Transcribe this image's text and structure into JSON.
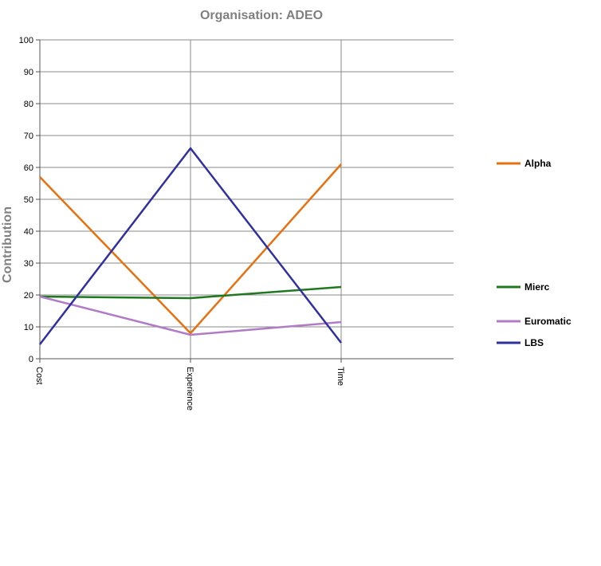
{
  "chart_data": {
    "type": "line",
    "title": "Organisation: ADEO",
    "xlabel": "",
    "ylabel": "Contribution",
    "categories": [
      "Cost",
      "Experience",
      "Time"
    ],
    "ylim": [
      0,
      100
    ],
    "yticks": [
      0,
      10,
      20,
      30,
      40,
      50,
      60,
      70,
      80,
      90,
      100
    ],
    "grid": true,
    "legend": "right",
    "series": [
      {
        "name": "Alpha",
        "color": "#e8700f",
        "values": [
          57,
          8,
          61
        ]
      },
      {
        "name": "Mierc",
        "color": "#207820",
        "values": [
          19.5,
          19,
          22.5
        ]
      },
      {
        "name": "Euromatic",
        "color": "#b07cc6",
        "values": [
          19.5,
          7.5,
          11.5
        ]
      },
      {
        "name": "LBS",
        "color": "#3030a0",
        "values": [
          4.5,
          66,
          5
        ]
      }
    ]
  }
}
